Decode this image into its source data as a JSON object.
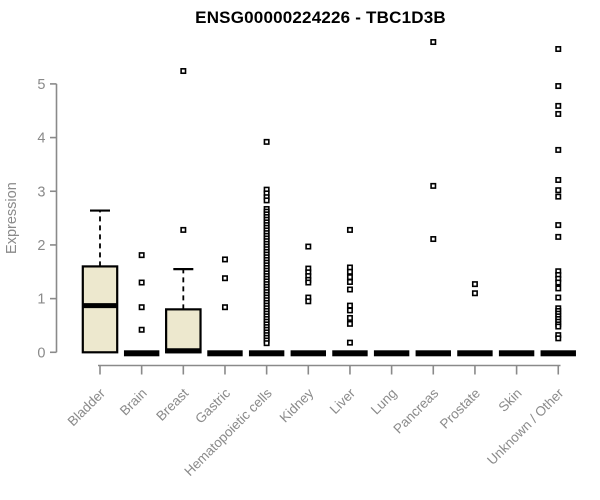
{
  "colors": {
    "background": "#FFFFFF",
    "box_fill": "#EDE8CE",
    "box_stroke": "#000000",
    "axis": "#8A8A8A",
    "label": "#8A8A8A",
    "title": "#000000",
    "outlier_fill": "#FFFFFF"
  },
  "chart_data": {
    "type": "boxplot",
    "title": "ENSG00000224226 - TBC1D3B",
    "xlabel": "",
    "ylabel": "Expression",
    "ylim": [
      0,
      5
    ],
    "yticks": [
      0,
      1,
      2,
      3,
      4,
      5
    ],
    "grid": false,
    "legend": "none",
    "categories": [
      "Bladder",
      "Brain",
      "Breast",
      "Gastric",
      "Hematopoietic cells",
      "Kidney",
      "Liver",
      "Lung",
      "Pancreas",
      "Prostate",
      "Skin",
      "Unknown / Other"
    ],
    "series": [
      {
        "name": "Bladder",
        "q1": 0,
        "median": 0.87,
        "q3": 1.6,
        "whisker_low": 0,
        "whisker_high": 2.64,
        "outliers": []
      },
      {
        "name": "Brain",
        "q1": 0,
        "median": 0,
        "q3": 0,
        "whisker_low": 0,
        "whisker_high": 0,
        "outliers": [
          1.81,
          1.3,
          0.84,
          0.42
        ]
      },
      {
        "name": "Breast",
        "q1": 0,
        "median": 0.03,
        "q3": 0.8,
        "whisker_low": 0,
        "whisker_high": 1.55,
        "outliers": [
          5.24,
          2.28
        ]
      },
      {
        "name": "Gastric",
        "q1": 0,
        "median": 0,
        "q3": 0,
        "whisker_low": 0,
        "whisker_high": 0,
        "outliers": [
          1.73,
          1.38,
          0.84
        ]
      },
      {
        "name": "Hematopoietic cells",
        "q1": 0,
        "median": 0,
        "q3": 0,
        "whisker_low": 0,
        "whisker_high": 0,
        "outliers": [
          3.92,
          3.03,
          2.96,
          2.89,
          2.83,
          2.67,
          2.62,
          2.57,
          2.52,
          2.47,
          2.42,
          2.37,
          2.32,
          2.27,
          2.22,
          2.17,
          2.12,
          2.07,
          2.02,
          1.97,
          1.92,
          1.87,
          1.82,
          1.77,
          1.72,
          1.67,
          1.62,
          1.57,
          1.52,
          1.47,
          1.42,
          1.37,
          1.32,
          1.27,
          1.22,
          1.17,
          1.12,
          1.07,
          1.02,
          0.97,
          0.92,
          0.87,
          0.82,
          0.77,
          0.72,
          0.67,
          0.62,
          0.57,
          0.52,
          0.47,
          0.42,
          0.37,
          0.32,
          0.27,
          0.22,
          0.17
        ]
      },
      {
        "name": "Kidney",
        "q1": 0,
        "median": 0,
        "q3": 0,
        "whisker_low": 0,
        "whisker_high": 0,
        "outliers": [
          1.97,
          1.56,
          1.49,
          1.42,
          1.35,
          1.3,
          1.02,
          0.95
        ]
      },
      {
        "name": "Liver",
        "q1": 0,
        "median": 0,
        "q3": 0,
        "whisker_low": 0,
        "whisker_high": 0,
        "outliers": [
          2.28,
          1.58,
          1.5,
          1.4,
          1.31,
          1.17,
          0.87,
          0.78,
          0.64,
          0.53,
          0.18
        ]
      },
      {
        "name": "Lung",
        "q1": 0,
        "median": 0,
        "q3": 0,
        "whisker_low": 0,
        "whisker_high": 0,
        "outliers": []
      },
      {
        "name": "Pancreas",
        "q1": 0,
        "median": 0,
        "q3": 0,
        "whisker_low": 0,
        "whisker_high": 0,
        "outliers": [
          5.78,
          3.1,
          2.11
        ]
      },
      {
        "name": "Prostate",
        "q1": 0,
        "median": 0,
        "q3": 0,
        "whisker_low": 0,
        "whisker_high": 0,
        "outliers": [
          1.27,
          1.1
        ]
      },
      {
        "name": "Skin",
        "q1": 0,
        "median": 0,
        "q3": 0,
        "whisker_low": 0,
        "whisker_high": 0,
        "outliers": []
      },
      {
        "name": "Unknown / Other",
        "q1": 0,
        "median": 0,
        "q3": 0,
        "whisker_low": 0,
        "whisker_high": 0,
        "outliers": [
          5.65,
          4.96,
          4.59,
          4.44,
          3.77,
          3.21,
          3.02,
          2.9,
          2.37,
          2.15,
          1.51,
          1.44,
          1.37,
          1.3,
          1.19,
          1.02,
          0.82,
          0.77,
          0.72,
          0.67,
          0.62,
          0.57,
          0.52,
          0.48,
          0.32,
          0.26
        ]
      }
    ]
  }
}
